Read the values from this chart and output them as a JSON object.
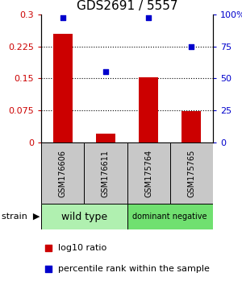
{
  "title": "GDS2691 / 5557",
  "samples": [
    "GSM176606",
    "GSM176611",
    "GSM175764",
    "GSM175765"
  ],
  "log10_ratio": [
    0.255,
    0.02,
    0.152,
    0.073
  ],
  "percentile_rank": [
    97,
    55,
    97,
    75
  ],
  "ylim_left": [
    0,
    0.3
  ],
  "ylim_right": [
    0,
    100
  ],
  "yticks_left": [
    0,
    0.075,
    0.15,
    0.225,
    0.3
  ],
  "yticks_right": [
    0,
    25,
    50,
    75,
    100
  ],
  "yticklabels_right": [
    "0",
    "25",
    "50",
    "75",
    "100%"
  ],
  "bar_color": "#CC0000",
  "marker_color": "#0000CC",
  "bg_color": "#ffffff",
  "sample_box_color": "#C8C8C8",
  "wt_color": "#B0F0B0",
  "dn_color": "#70E070",
  "title_fontsize": 11,
  "tick_fontsize": 8,
  "sample_fontsize": 7,
  "group_fontsize_wt": 9,
  "group_fontsize_dn": 7,
  "legend_fontsize": 8
}
